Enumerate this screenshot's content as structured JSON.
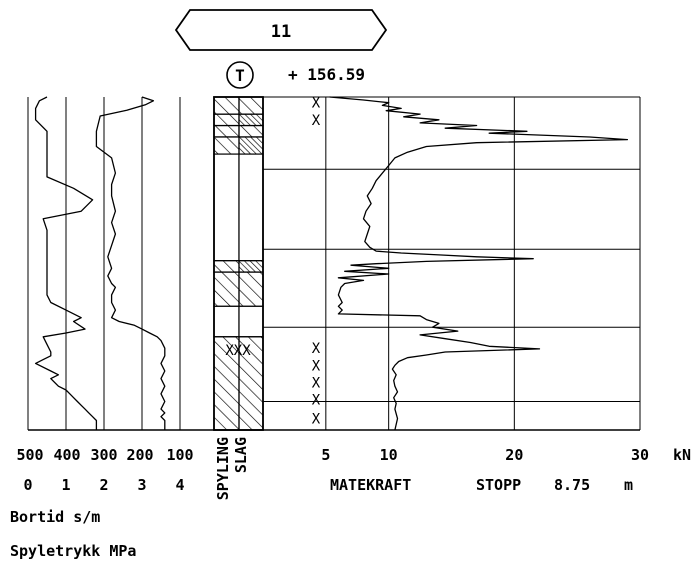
{
  "header": {
    "borehole_id": "11",
    "symbol_letter": "T",
    "elevation": "+ 156.59"
  },
  "chart_data": {
    "type": "line",
    "title": "",
    "grid": true,
    "left_scale": {
      "bortid_ticks": [
        "500",
        "400",
        "300",
        "200",
        "100"
      ],
      "spyletrykk_ticks": [
        "0",
        "1",
        "2",
        "3",
        "4"
      ],
      "bortid_label": "Bortid s/m",
      "spyletrykk_label": "Spyletrykk MPa"
    },
    "middle_labels": [
      "SPYLING",
      "SLAG"
    ],
    "right_scale": {
      "ticks": [
        "5",
        "10",
        "20",
        "30"
      ],
      "unit": "kN",
      "xlabel": "MATEKRAFT",
      "stop_label": "STOPP",
      "stop_value": "8.75",
      "stop_unit": "m",
      "xlim": [
        0,
        30
      ]
    },
    "ylim_depth_m": [
      0,
      8.75
    ],
    "series": [
      {
        "id": "bortid",
        "x": [
          450,
          470,
          480,
          480,
          450,
          450,
          450,
          450,
          450,
          380,
          330,
          360,
          460,
          450,
          450,
          450,
          450,
          450,
          450,
          450,
          440,
          400,
          360,
          380,
          350,
          400,
          460,
          450,
          440,
          440,
          460,
          480,
          440,
          420,
          440,
          420,
          400,
          390,
          380,
          370,
          360,
          350,
          340,
          330,
          320,
          320
        ],
        "y": [
          0,
          0.1,
          0.3,
          0.6,
          0.9,
          1.2,
          1.5,
          1.8,
          2.1,
          2.4,
          2.7,
          3.0,
          3.2,
          3.5,
          3.8,
          4.1,
          4.5,
          4.9,
          5.0,
          5.2,
          5.4,
          5.6,
          5.8,
          5.9,
          6.1,
          6.2,
          6.3,
          6.5,
          6.7,
          6.8,
          6.9,
          7.0,
          7.2,
          7.3,
          7.4,
          7.6,
          7.7,
          7.8,
          7.9,
          8.0,
          8.1,
          8.2,
          8.3,
          8.4,
          8.5,
          8.75
        ]
      },
      {
        "id": "spyletrykk",
        "x": [
          3.0,
          3.3,
          3.1,
          2.6,
          1.9,
          1.8,
          1.8,
          2.2,
          2.3,
          2.2,
          2.2,
          2.3,
          2.2,
          2.3,
          2.2,
          2.1,
          2.2,
          2.1,
          2.2,
          2.3,
          2.2,
          2.2,
          2.3,
          2.2,
          2.4,
          2.8,
          3.0,
          3.2,
          3.4,
          3.5,
          3.6,
          3.6,
          3.5,
          3.6,
          3.5,
          3.6,
          3.5,
          3.6,
          3.5,
          3.6,
          3.5,
          3.6,
          3.6,
          3.6
        ],
        "y": [
          0,
          0.1,
          0.2,
          0.35,
          0.5,
          0.9,
          1.3,
          1.6,
          2.0,
          2.3,
          2.6,
          3.0,
          3.3,
          3.6,
          3.9,
          4.2,
          4.5,
          4.7,
          4.9,
          5.0,
          5.2,
          5.4,
          5.6,
          5.8,
          5.9,
          6.0,
          6.1,
          6.2,
          6.3,
          6.4,
          6.6,
          6.8,
          7.0,
          7.2,
          7.4,
          7.6,
          7.8,
          8.0,
          8.2,
          8.3,
          8.4,
          8.5,
          8.6,
          8.75
        ]
      },
      {
        "id": "matekraft",
        "x": [
          5.3,
          8.0,
          10.0,
          9.5,
          11.0,
          9.8,
          12.5,
          11.2,
          14.0,
          12.5,
          17.0,
          14.5,
          21.0,
          18.0,
          26.0,
          29.0,
          17.0,
          13.0,
          11.5,
          10.5,
          10.0,
          9.5,
          9.0,
          8.7,
          8.3,
          8.6,
          8.2,
          8.0,
          8.5,
          8.3,
          8.1,
          8.5,
          9.0,
          11.0,
          14.0,
          17.0,
          21.5,
          13.0,
          9.0,
          7.0,
          10.0,
          6.5,
          10.0,
          6.0,
          8.0,
          6.5,
          6.2,
          6.0,
          6.3,
          6.0,
          6.3,
          6.0,
          12.5,
          13.0,
          14.0,
          13.5,
          15.5,
          12.5,
          14.5,
          16.5,
          18.0,
          22.0,
          14.5,
          13.0,
          11.5,
          10.8,
          10.5,
          10.3,
          10.6,
          10.4,
          10.5,
          10.7,
          10.4,
          10.6,
          10.5,
          10.7,
          10.5
        ],
        "y": [
          0,
          0.08,
          0.15,
          0.22,
          0.3,
          0.36,
          0.45,
          0.52,
          0.6,
          0.68,
          0.75,
          0.82,
          0.9,
          0.95,
          1.05,
          1.12,
          1.2,
          1.3,
          1.45,
          1.6,
          1.8,
          2.0,
          2.2,
          2.4,
          2.6,
          2.8,
          3.0,
          3.2,
          3.4,
          3.6,
          3.8,
          3.95,
          4.05,
          4.1,
          4.15,
          4.2,
          4.25,
          4.32,
          4.38,
          4.42,
          4.5,
          4.58,
          4.65,
          4.75,
          4.82,
          4.9,
          5.0,
          5.2,
          5.4,
          5.5,
          5.6,
          5.7,
          5.75,
          5.85,
          5.95,
          6.05,
          6.15,
          6.25,
          6.35,
          6.45,
          6.55,
          6.62,
          6.7,
          6.78,
          6.85,
          6.95,
          7.05,
          7.15,
          7.3,
          7.45,
          7.6,
          7.75,
          7.9,
          8.05,
          8.2,
          8.45,
          8.75
        ]
      }
    ],
    "x_markers": {
      "symbol": "X",
      "matekraft_depths": [
        0.15,
        0.6,
        6.6,
        7.05,
        7.5,
        7.95,
        8.45
      ],
      "log_depths": [
        6.65
      ]
    },
    "log_blocks": [
      {
        "top": 0.0,
        "bottom": 0.45,
        "spyling": "hatch",
        "slag": "hatch"
      },
      {
        "top": 0.45,
        "bottom": 0.75,
        "spyling": "hatch",
        "slag": "dense"
      },
      {
        "top": 0.75,
        "bottom": 1.05,
        "spyling": "hatch",
        "slag": "hatch"
      },
      {
        "top": 1.05,
        "bottom": 1.5,
        "spyling": "hatch",
        "slag": "dense"
      },
      {
        "top": 1.5,
        "bottom": 4.3,
        "spyling": "blank",
        "slag": "blank"
      },
      {
        "top": 4.3,
        "bottom": 4.6,
        "spyling": "hatch",
        "slag": "dense"
      },
      {
        "top": 4.6,
        "bottom": 5.5,
        "spyling": "hatch",
        "slag": "hatch"
      },
      {
        "top": 5.5,
        "bottom": 6.3,
        "spyling": "blank",
        "slag": "blank"
      },
      {
        "top": 6.3,
        "bottom": 8.75,
        "spyling": "hatch",
        "slag": "hatch"
      }
    ]
  }
}
